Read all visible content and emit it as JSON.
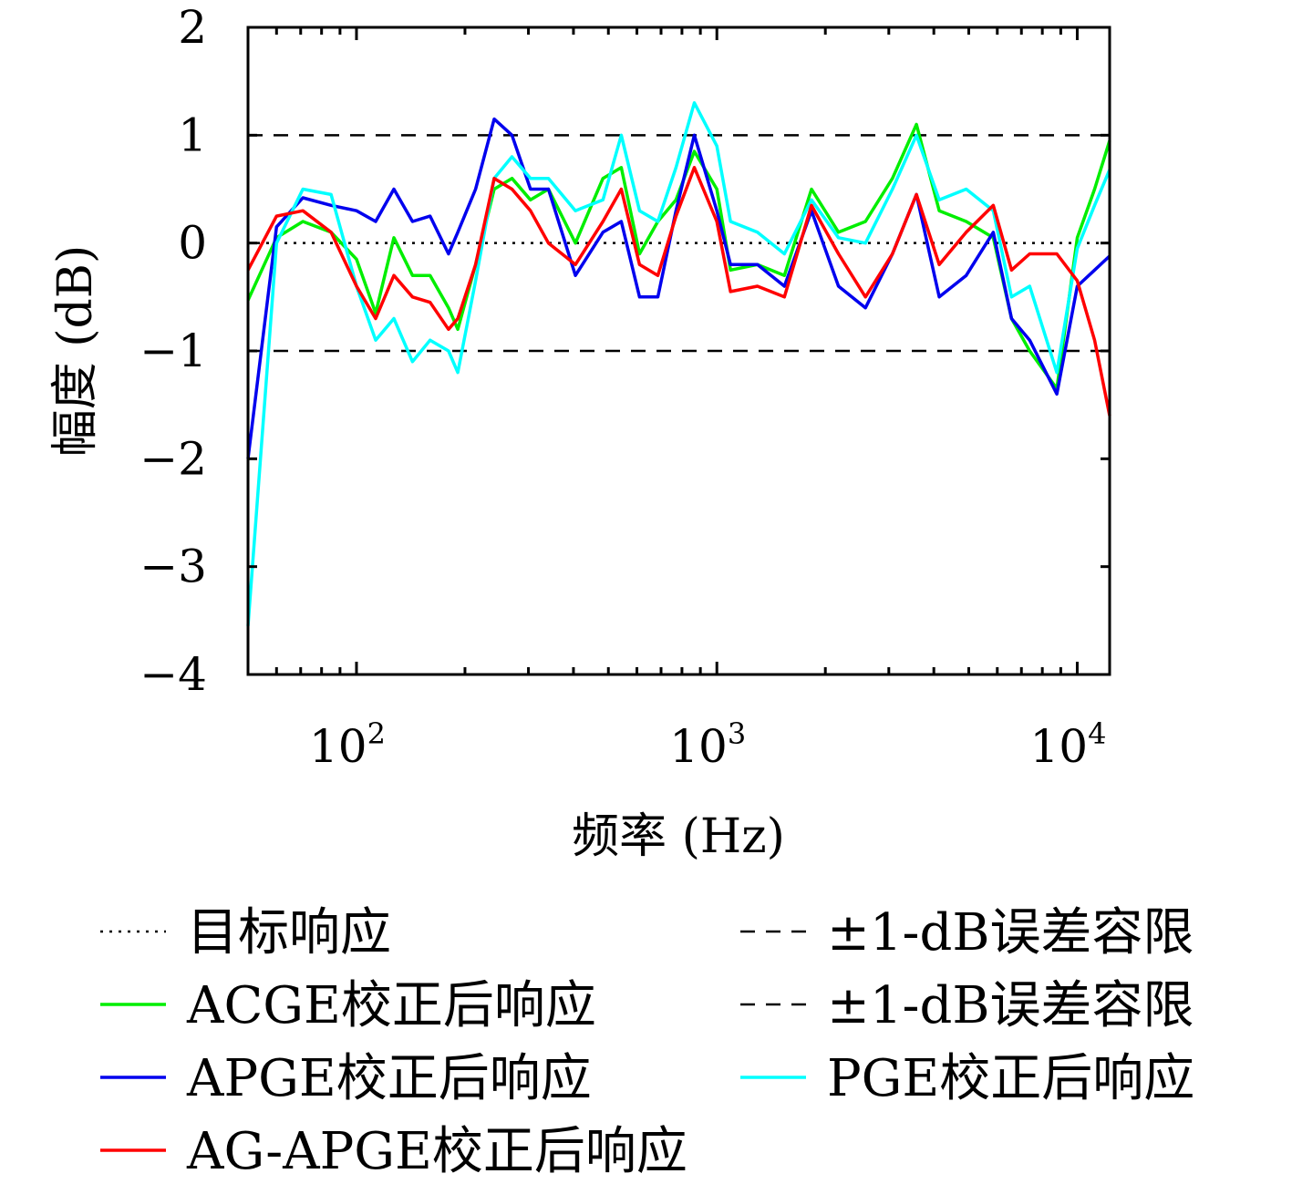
{
  "chart_data": {
    "type": "line",
    "xlabel": "频率 (Hz)",
    "ylabel": "幅度 (dB)",
    "xscale": "log",
    "xlim": [
      50,
      12300
    ],
    "ylim": [
      -4,
      2
    ],
    "yticks": [
      -4,
      -3,
      -2,
      -1,
      0,
      1,
      2
    ],
    "ytick_labels": [
      "−4",
      "−3",
      "−2",
      "−1",
      "0",
      "1",
      "2"
    ],
    "xticks": [
      {
        "value": 100,
        "base": "10",
        "exp": "2"
      },
      {
        "value": 1000,
        "base": "10",
        "exp": "3"
      },
      {
        "value": 10000,
        "base": "10",
        "exp": "4"
      }
    ],
    "grid": false,
    "legend_position": "bottom",
    "x": [
      50,
      60,
      71,
      85,
      100,
      113,
      127,
      143,
      160,
      180,
      191,
      214,
      241,
      270,
      304,
      341,
      405,
      483,
      543,
      610,
      686,
      770,
      866,
      1000,
      1091,
      1296,
      1540,
      1830,
      2175,
      2585,
      3070,
      3580,
      4140,
      4920,
      5850,
      6570,
      7380,
      8780,
      10000,
      11170,
      12300
    ],
    "reference_lines": [
      {
        "name": "目标响应",
        "y": 0,
        "style": "dotted",
        "color": "#000000"
      },
      {
        "name": "±1-dB误差容限",
        "y": 1,
        "style": "dashed",
        "color": "#000000"
      },
      {
        "name": "±1-dB误差容限",
        "y": -1,
        "style": "dashed",
        "color": "#000000"
      }
    ],
    "series": [
      {
        "name": "ACGE校正后响应",
        "color": "#00ee00",
        "values": [
          -0.53,
          0.05,
          0.2,
          0.1,
          -0.15,
          -0.65,
          0.05,
          -0.3,
          -0.3,
          -0.6,
          -0.8,
          -0.2,
          0.5,
          0.6,
          0.4,
          0.5,
          0.0,
          0.6,
          0.7,
          -0.1,
          0.2,
          0.4,
          0.85,
          0.5,
          -0.25,
          -0.2,
          -0.3,
          0.5,
          0.1,
          0.2,
          0.6,
          1.1,
          0.3,
          0.2,
          0.05,
          -0.7,
          -1.0,
          -1.35,
          0.05,
          0.5,
          0.95
        ]
      },
      {
        "name": "APGE校正后响应",
        "color": "#0000ee",
        "values": [
          -2.0,
          0.15,
          0.42,
          0.35,
          0.3,
          0.2,
          0.5,
          0.2,
          0.25,
          -0.1,
          0.1,
          0.5,
          1.15,
          1.0,
          0.5,
          0.5,
          -0.3,
          0.1,
          0.2,
          -0.5,
          -0.5,
          0.3,
          1.0,
          0.3,
          -0.2,
          -0.2,
          -0.4,
          0.3,
          -0.4,
          -0.6,
          -0.1,
          0.45,
          -0.5,
          -0.3,
          0.1,
          -0.7,
          -0.9,
          -1.4,
          -0.4,
          -0.25,
          -0.12
        ]
      },
      {
        "name": "PGE校正后响应",
        "color": "#00ffff",
        "values": [
          -3.55,
          0.0,
          0.5,
          0.45,
          -0.4,
          -0.9,
          -0.7,
          -1.1,
          -0.9,
          -1.0,
          -1.2,
          -0.35,
          0.6,
          0.8,
          0.6,
          0.6,
          0.3,
          0.4,
          1.0,
          0.3,
          0.2,
          0.7,
          1.3,
          0.9,
          0.2,
          0.1,
          -0.1,
          0.4,
          0.05,
          0.0,
          0.5,
          1.0,
          0.4,
          0.5,
          0.3,
          -0.5,
          -0.4,
          -1.2,
          -0.05,
          0.35,
          0.68
        ]
      },
      {
        "name": "AG-APGE校正后响应",
        "color": "#ff0000",
        "values": [
          -0.25,
          0.25,
          0.3,
          0.1,
          -0.4,
          -0.7,
          -0.3,
          -0.5,
          -0.55,
          -0.8,
          -0.7,
          -0.2,
          0.6,
          0.5,
          0.3,
          0.0,
          -0.2,
          0.2,
          0.5,
          -0.2,
          -0.3,
          0.25,
          0.7,
          0.2,
          -0.45,
          -0.4,
          -0.5,
          0.35,
          -0.1,
          -0.5,
          -0.1,
          0.45,
          -0.2,
          0.1,
          0.35,
          -0.25,
          -0.1,
          -0.1,
          -0.35,
          -0.9,
          -1.6
        ]
      }
    ],
    "legend": [
      {
        "label": "目标响应",
        "color": "#000000",
        "style": "dotted"
      },
      {
        "label": "±1-dB误差容限",
        "color": "#000000",
        "style": "dashed"
      },
      {
        "label": "ACGE校正后响应",
        "color": "#00ee00",
        "style": "solid"
      },
      {
        "label": "±1-dB误差容限",
        "color": "#000000",
        "style": "dashed"
      },
      {
        "label": "APGE校正后响应",
        "color": "#0000ee",
        "style": "solid"
      },
      {
        "label": "PGE校正后响应",
        "color": "#00ffff",
        "style": "solid"
      },
      {
        "label": "AG-APGE校正后响应",
        "color": "#ff0000",
        "style": "solid"
      }
    ]
  }
}
